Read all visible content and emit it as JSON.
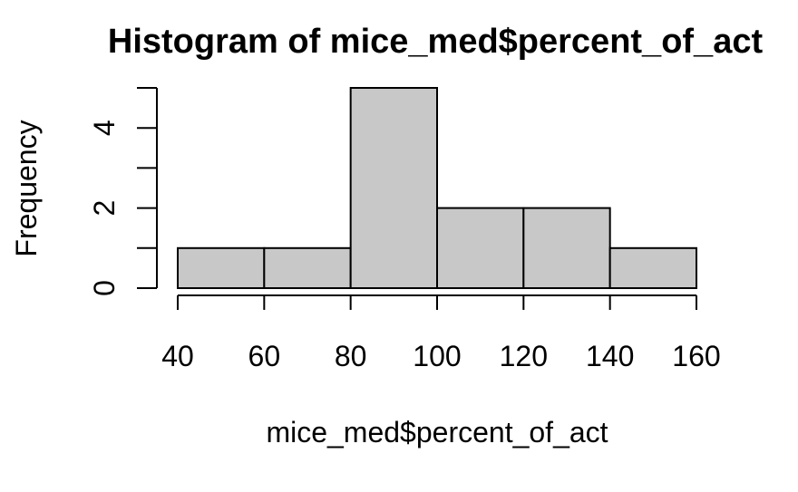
{
  "chart_data": {
    "type": "bar",
    "title": "Histogram of mice_med$percent_of_act",
    "xlabel": "mice_med$percent_of_act",
    "ylabel": "Frequency",
    "bins": [
      {
        "start": 40,
        "end": 60,
        "count": 1
      },
      {
        "start": 60,
        "end": 80,
        "count": 1
      },
      {
        "start": 80,
        "end": 100,
        "count": 5
      },
      {
        "start": 100,
        "end": 120,
        "count": 2
      },
      {
        "start": 120,
        "end": 140,
        "count": 2
      },
      {
        "start": 140,
        "end": 160,
        "count": 1
      }
    ],
    "xticks": [
      40,
      60,
      80,
      100,
      120,
      140,
      160
    ],
    "yticks": [
      0,
      1,
      2,
      3,
      4,
      5
    ],
    "ytick_labels": [
      "0",
      "2",
      "4"
    ],
    "xlim": [
      40,
      160
    ],
    "ylim": [
      0,
      5
    ],
    "grid": false,
    "bar_color": "#c8c8c8",
    "edge_color": "#000000"
  }
}
